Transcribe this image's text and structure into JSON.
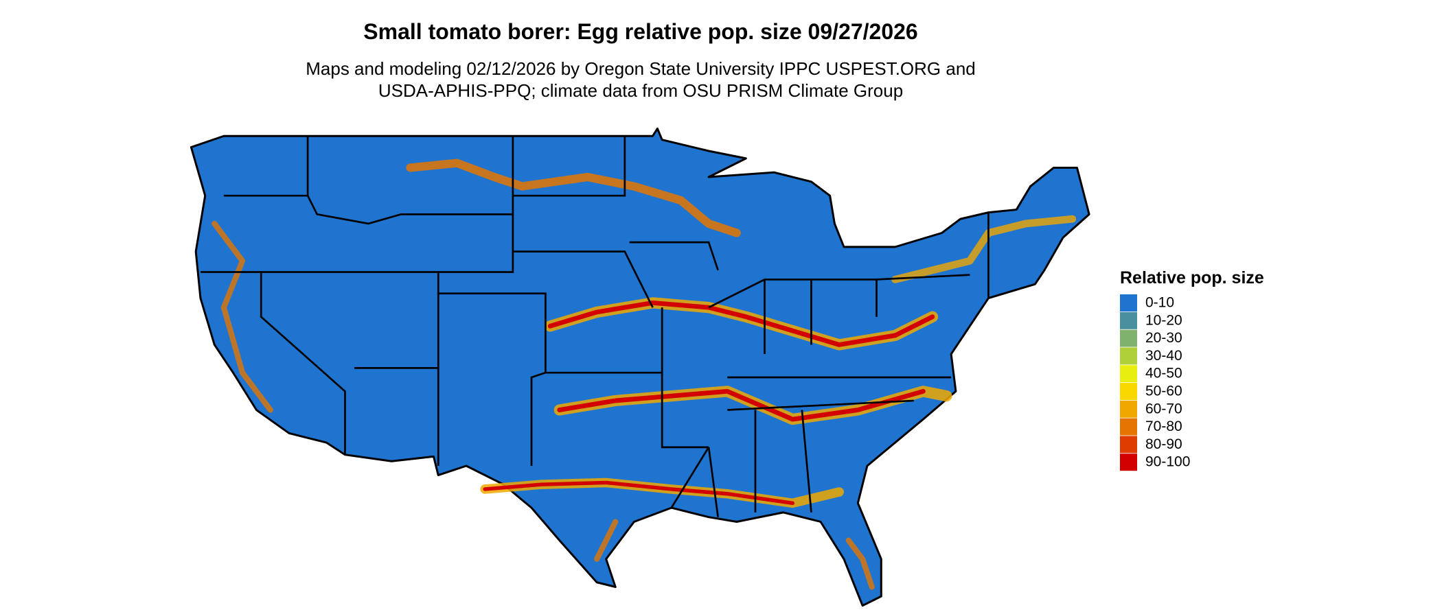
{
  "title": "Small tomato borer: Egg relative pop. size 09/27/2026",
  "subtitle": [
    "Maps and modeling 02/12/2026 by Oregon State University IPPC USPEST.ORG and",
    "USDA-APHIS-PPQ; climate data from OSU PRISM Climate Group"
  ],
  "legend": {
    "title": "Relative pop. size",
    "items": [
      {
        "label": "0-10",
        "color": "#1f74d0"
      },
      {
        "label": "10-20",
        "color": "#4a8f9f"
      },
      {
        "label": "20-30",
        "color": "#7fb36d"
      },
      {
        "label": "30-40",
        "color": "#b0d03a"
      },
      {
        "label": "40-50",
        "color": "#e8ee10"
      },
      {
        "label": "50-60",
        "color": "#f9d800"
      },
      {
        "label": "60-70",
        "color": "#f0a800"
      },
      {
        "label": "70-80",
        "color": "#e57500"
      },
      {
        "label": "80-90",
        "color": "#df3d00"
      },
      {
        "label": "90-100",
        "color": "#d20000"
      }
    ]
  }
}
